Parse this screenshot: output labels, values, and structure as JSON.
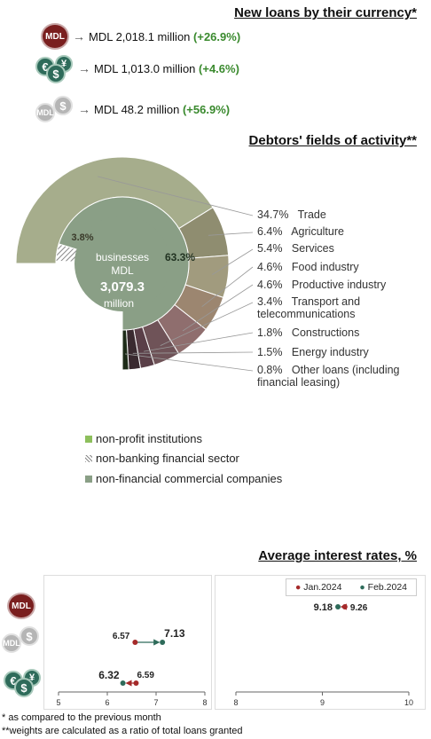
{
  "currency": {
    "title": "New loans by their currency*",
    "rows": [
      {
        "icon": "mdl-coin-icon",
        "badge": "MDL",
        "text": "MDL 2,018.1 million",
        "change": "(+26.9%)"
      },
      {
        "icon": "euro-dollar-yen-coins-icon",
        "text": "MDL 1,013.0 million",
        "change": "(+4.6%)"
      },
      {
        "icon": "grey-mdl-dollar-coins-icon",
        "text": "MDL 48.2 million",
        "change": "(+56.9%)"
      }
    ]
  },
  "activity": {
    "title": "Debtors' fields of activity**",
    "center": {
      "line1": "businesses",
      "line2": "MDL",
      "value": "3,079.3",
      "line4": "million"
    },
    "inner_labels": {
      "non_banking": "3.8%",
      "non_financial": "63.3%"
    },
    "fields": [
      {
        "pct": "34.7%",
        "name": "Trade"
      },
      {
        "pct": "6.4%",
        "name": "Agriculture"
      },
      {
        "pct": "5.4%",
        "name": "Services"
      },
      {
        "pct": "4.6%",
        "name": "Food industry"
      },
      {
        "pct": "4.6%",
        "name": "Productive industry"
      },
      {
        "pct": "3.4%",
        "name": "Transport and",
        "name2": "telecommunications"
      },
      {
        "pct": "1.8%",
        "name": "Constructions"
      },
      {
        "pct": "1.5%",
        "name": "Energy industry"
      },
      {
        "pct": "0.8%",
        "name": "Other loans (including",
        "name2": "financial leasing)"
      }
    ],
    "legend": [
      {
        "label": "non-profit institutions",
        "color": "#8dbf5c"
      },
      {
        "label": "non-banking financial sector",
        "color": "#999999"
      },
      {
        "label": "non-financial commercial companies",
        "color": "#8a9f86"
      }
    ],
    "colors": {
      "outer": [
        "#a6ad8c",
        "#8f8d70",
        "#a19b7e",
        "#9c8670",
        "#8f6e6e",
        "#6f5358",
        "#5a3f48",
        "#3a2a30",
        "#1d2b18"
      ],
      "inner_main": "#8a9f86",
      "inner_hatch": "#999999",
      "inner_small": "#8dbf5c"
    }
  },
  "rates": {
    "title": "Average interest rates, %",
    "legend": [
      {
        "label": "Jan.2024",
        "color": "#a52a2a"
      },
      {
        "label": "Feb.2024",
        "color": "#2e6b5a"
      }
    ],
    "row_icons": [
      "mdl-coin-icon",
      "grey-mdl-dollar-coins-icon",
      "euro-dollar-yen-coins-icon"
    ],
    "row_badges": [
      "MDL"
    ]
  },
  "chart_data": [
    {
      "type": "pie",
      "title": "Debtors' fields of activity**",
      "rings": {
        "outer": {
          "categories": [
            "Trade",
            "Agriculture",
            "Services",
            "Food industry",
            "Productive industry",
            "Transport and telecommunications",
            "Constructions",
            "Energy industry",
            "Other loans (including financial leasing)"
          ],
          "values": [
            34.7,
            6.4,
            5.4,
            4.6,
            4.6,
            3.4,
            1.8,
            1.5,
            0.8
          ]
        },
        "inner": {
          "categories": [
            "non-profit institutions",
            "non-banking financial sector",
            "non-financial commercial companies"
          ],
          "values": [
            0.0,
            3.8,
            63.3
          ]
        }
      },
      "total": "MDL 3,079.3 million"
    },
    {
      "type": "scatter",
      "title": "Average interest rates, %",
      "series": [
        {
          "name": "Jan.2024",
          "values": [
            6.57,
            6.59,
            9.26
          ]
        },
        {
          "name": "Feb.2024",
          "values": [
            7.13,
            6.32,
            9.18
          ]
        }
      ],
      "rows": [
        "grey-mdl-dollar-coins-icon",
        "euro-dollar-yen-coins-icon",
        "mdl-coin-icon"
      ],
      "panels": [
        {
          "xlim": [
            5,
            8
          ],
          "xticks": [
            "5",
            "6",
            "7",
            "8"
          ],
          "rows": [
            0,
            1
          ]
        },
        {
          "xlim": [
            8,
            10
          ],
          "xticks": [
            "8",
            "9",
            "10"
          ],
          "rows": [
            2
          ]
        }
      ],
      "labels": {
        "r0_jan": "6.57",
        "r0_feb": "7.13",
        "r1_jan": "6.59",
        "r1_feb": "6.32",
        "r2_jan": "9.26",
        "r2_feb": "9.18"
      }
    }
  ],
  "footnotes": [
    "* as compared to the previous month",
    "**weights are calculated as a ratio of total loans granted"
  ]
}
